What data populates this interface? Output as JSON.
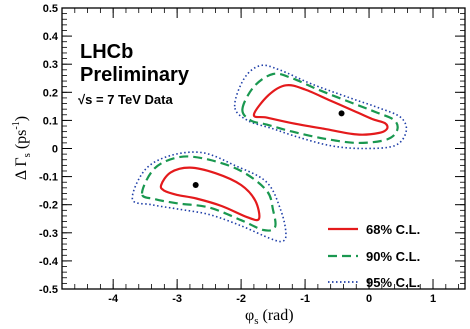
{
  "chart_data": {
    "type": "contour",
    "xlabel": {
      "main": "φ",
      "sub": "s",
      "rest": " (rad)"
    },
    "ylabel": {
      "main": "Δ Γ",
      "sub": "s",
      "rest": " (ps",
      "sup": "-1",
      "end": ")"
    },
    "xlim": [
      -4.8,
      1.5
    ],
    "ylim": [
      -0.5,
      0.5
    ],
    "xticks": [
      -4,
      -3,
      -2,
      -1,
      0,
      1
    ],
    "yticks": [
      -0.5,
      -0.4,
      -0.3,
      -0.2,
      -0.1,
      0,
      0.1,
      0.2,
      0.3,
      0.4,
      0.5
    ],
    "annotation": {
      "line1": "LHCb",
      "line2": "Preliminary",
      "energy_prefix": "√s",
      "energy_rest": " = 7 TeV Data"
    },
    "best_fit_points": [
      {
        "x": -0.43,
        "y": 0.125
      },
      {
        "x": -2.71,
        "y": -0.13
      }
    ],
    "contours": [
      {
        "name": "68% C.L.",
        "color": "#e41a1c",
        "style": "solid",
        "regions": [
          [
            [
              -1.8,
              0.12
            ],
            [
              -1.57,
              0.19
            ],
            [
              -1.3,
              0.225
            ],
            [
              -1.0,
              0.21
            ],
            [
              -0.6,
              0.17
            ],
            [
              -0.2,
              0.13
            ],
            [
              0.05,
              0.105
            ],
            [
              0.25,
              0.09
            ],
            [
              0.28,
              0.07
            ],
            [
              0.15,
              0.055
            ],
            [
              -0.2,
              0.05
            ],
            [
              -0.7,
              0.07
            ],
            [
              -1.2,
              0.09
            ],
            [
              -1.6,
              0.11
            ]
          ],
          [
            [
              -3.25,
              -0.13
            ],
            [
              -3.1,
              -0.085
            ],
            [
              -2.8,
              -0.068
            ],
            [
              -2.4,
              -0.088
            ],
            [
              -2.0,
              -0.13
            ],
            [
              -1.78,
              -0.185
            ],
            [
              -1.72,
              -0.25
            ],
            [
              -1.9,
              -0.245
            ],
            [
              -2.3,
              -0.205
            ],
            [
              -2.7,
              -0.178
            ],
            [
              -3.0,
              -0.165
            ],
            [
              -3.2,
              -0.15
            ]
          ]
        ]
      },
      {
        "name": "90% C.L.",
        "color": "#1a9850",
        "style": "dashed",
        "regions": [
          [
            [
              -1.98,
              0.14
            ],
            [
              -1.8,
              0.22
            ],
            [
              -1.5,
              0.265
            ],
            [
              -1.2,
              0.25
            ],
            [
              -0.8,
              0.21
            ],
            [
              -0.3,
              0.165
            ],
            [
              0.1,
              0.13
            ],
            [
              0.4,
              0.1
            ],
            [
              0.43,
              0.06
            ],
            [
              0.25,
              0.03
            ],
            [
              -0.2,
              0.02
            ],
            [
              -0.7,
              0.035
            ],
            [
              -1.2,
              0.06
            ],
            [
              -1.6,
              0.085
            ],
            [
              -1.85,
              0.1
            ]
          ],
          [
            [
              -3.55,
              -0.16
            ],
            [
              -3.35,
              -0.07
            ],
            [
              -2.95,
              -0.03
            ],
            [
              -2.5,
              -0.04
            ],
            [
              -2.0,
              -0.08
            ],
            [
              -1.6,
              -0.15
            ],
            [
              -1.5,
              -0.22
            ],
            [
              -1.47,
              -0.28
            ],
            [
              -1.65,
              -0.29
            ],
            [
              -2.0,
              -0.255
            ],
            [
              -2.5,
              -0.21
            ],
            [
              -3.0,
              -0.195
            ],
            [
              -3.35,
              -0.18
            ]
          ]
        ]
      },
      {
        "name": "95% C.L.",
        "color": "#1f3fa8",
        "style": "dotted",
        "regions": [
          [
            [
              -2.1,
              0.15
            ],
            [
              -1.95,
              0.25
            ],
            [
              -1.7,
              0.295
            ],
            [
              -1.4,
              0.28
            ],
            [
              -0.9,
              0.23
            ],
            [
              -0.3,
              0.18
            ],
            [
              0.15,
              0.145
            ],
            [
              0.5,
              0.11
            ],
            [
              0.58,
              0.06
            ],
            [
              0.4,
              0.01
            ],
            [
              -0.1,
              0.0
            ],
            [
              -0.6,
              0.01
            ],
            [
              -1.1,
              0.04
            ],
            [
              -1.5,
              0.07
            ],
            [
              -1.9,
              0.1
            ]
          ],
          [
            [
              -3.7,
              -0.18
            ],
            [
              -3.5,
              -0.075
            ],
            [
              -3.1,
              -0.025
            ],
            [
              -2.6,
              -0.015
            ],
            [
              -2.1,
              -0.06
            ],
            [
              -1.6,
              -0.12
            ],
            [
              -1.38,
              -0.22
            ],
            [
              -1.3,
              -0.3
            ],
            [
              -1.35,
              -0.33
            ],
            [
              -1.55,
              -0.32
            ],
            [
              -2.0,
              -0.275
            ],
            [
              -2.5,
              -0.235
            ],
            [
              -3.0,
              -0.215
            ],
            [
              -3.4,
              -0.2
            ]
          ]
        ]
      }
    ],
    "legend": {
      "placement": "bottom-right"
    }
  }
}
